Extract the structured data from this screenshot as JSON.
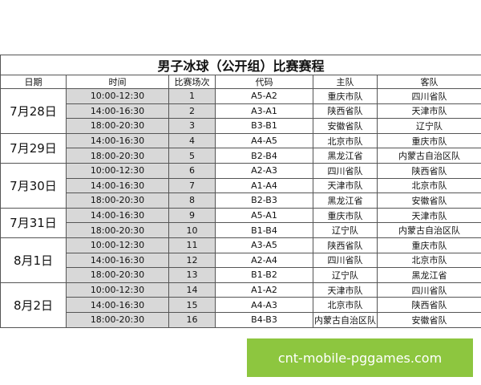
{
  "title": "男子冰球（公开组）比赛赛程",
  "table": {
    "headers": [
      "日期",
      "时间",
      "比赛场次",
      "代码",
      "主队",
      "客队"
    ],
    "groups": [
      {
        "date": "7月28日",
        "rows": [
          [
            "10:00-12:30",
            1,
            "A5-A2",
            "重庆市队",
            "四川省队"
          ],
          [
            "14:00-16:30",
            2,
            "A3-A1",
            "陕西省队",
            "天津市队"
          ],
          [
            "18:00-20:30",
            3,
            "B3-B1",
            "安徽省队",
            "辽宁队"
          ]
        ]
      },
      {
        "date": "7月29日",
        "rows": [
          [
            "14:00-16:30",
            4,
            "A4-A5",
            "北京市队",
            "重庆市队"
          ],
          [
            "18:00-20:30",
            5,
            "B2-B4",
            "黑龙江省",
            "内蒙古自治区队"
          ]
        ]
      },
      {
        "date": "7月30日",
        "rows": [
          [
            "10:00-12:30",
            6,
            "A2-A3",
            "四川省队",
            "陕西省队"
          ],
          [
            "14:00-16:30",
            7,
            "A1-A4",
            "天津市队",
            "北京市队"
          ],
          [
            "18:00-20:30",
            8,
            "B2-B3",
            "黑龙江省",
            "安徽省队"
          ]
        ]
      },
      {
        "date": "7月31日",
        "rows": [
          [
            "14:00-16:30",
            9,
            "A5-A1",
            "重庆市队",
            "天津市队"
          ],
          [
            "18:00-20:30",
            10,
            "B1-B4",
            "辽宁队",
            "内蒙古自治区队"
          ]
        ]
      },
      {
        "date": "8月1日",
        "rows": [
          [
            "10:00-12:30",
            11,
            "A3-A5",
            "陕西省队",
            "重庆市队"
          ],
          [
            "14:00-16:30",
            12,
            "A2-A4",
            "四川省队",
            "北京市队"
          ],
          [
            "18:00-20:30",
            13,
            "B1-B2",
            "辽宁队",
            "黑龙江省"
          ]
        ]
      },
      {
        "date": "8月2日",
        "rows": [
          [
            "10:00-12:30",
            14,
            "A1-A2",
            "天津市队",
            "四川省队"
          ],
          [
            "14:00-16:30",
            15,
            "A4-A3",
            "北京市队",
            "陕西省队"
          ],
          [
            "18:00-20:30",
            16,
            "B4-B3",
            "内蒙古自治区队",
            "安徽省队"
          ]
        ]
      }
    ]
  },
  "watermark": "cnt-mobile-pggames.com"
}
